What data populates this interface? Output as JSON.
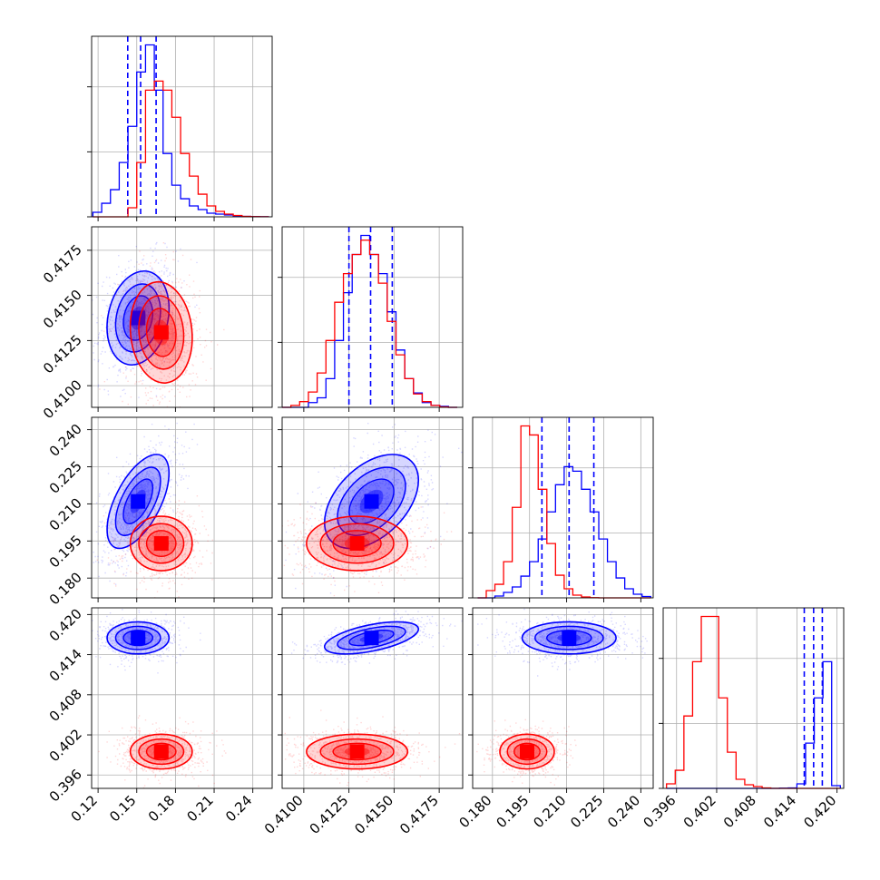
{
  "chart_data": {
    "type": "corner",
    "grid": true,
    "colors": {
      "series_a": "#0000ff",
      "series_b": "#ff0000"
    },
    "params": [
      {
        "range": [
          0.115,
          0.255
        ],
        "ticks": [
          0.12,
          0.15,
          0.18,
          0.21,
          0.24
        ],
        "tick_labels": [
          "0.12",
          "0.15",
          "0.18",
          "0.21",
          "0.24"
        ]
      },
      {
        "range": [
          0.4088,
          0.4188
        ],
        "ticks": [
          0.41,
          0.4125,
          0.415,
          0.4175
        ],
        "tick_labels": [
          "0.4100",
          "0.4125",
          "0.4150",
          "0.4175"
        ]
      },
      {
        "range": [
          0.172,
          0.245
        ],
        "ticks": [
          0.18,
          0.195,
          0.21,
          0.225,
          0.24
        ],
        "tick_labels": [
          "0.180",
          "0.195",
          "0.210",
          "0.225",
          "0.240"
        ]
      },
      {
        "range": [
          0.394,
          0.421
        ],
        "ticks": [
          0.396,
          0.402,
          0.408,
          0.414,
          0.42
        ],
        "tick_labels": [
          "0.396",
          "0.402",
          "0.408",
          "0.414",
          "0.420"
        ]
      }
    ],
    "series": [
      {
        "color": "#0000ff",
        "quantiles": [
          [
            0.143,
            0.153,
            0.165
          ],
          [
            0.4125,
            0.4137,
            0.4149
          ],
          [
            0.2,
            0.211,
            0.221
          ],
          [
            0.4151,
            0.4165,
            0.4178
          ]
        ],
        "means": [
          0.151,
          0.41375,
          0.211,
          0.4165
        ],
        "sds": [
          0.012,
          0.0013,
          0.0095,
          0.0012
        ],
        "corr": [
          [
            0,
            1,
            0.2
          ],
          [
            0,
            2,
            0.6
          ],
          [
            1,
            2,
            0.45
          ],
          [
            1,
            3,
            0.55
          ],
          [
            0,
            3,
            0.0
          ],
          [
            2,
            3,
            0.0
          ]
        ],
        "hists": [
          {
            "edges": [
              0.116,
              0.252
            ],
            "counts": [
              0.5,
              1.5,
              3,
              6,
              10,
              16,
              19,
              14,
              7,
              3.5,
              2,
              1.2,
              0.8,
              0.4,
              0.3,
              0.2,
              0.1,
              0.05,
              0.02,
              0.01
            ]
          },
          {
            "edges": [
              0.4088,
              0.4185
            ],
            "counts": [
              0,
              0,
              0,
              0.5,
              1,
              3,
              7,
              12,
              16,
              18,
              16,
              14,
              10,
              6,
              3,
              1.5,
              0.5,
              0.2,
              0.1,
              0
            ]
          },
          {
            "edges": [
              0.174,
              0.244
            ],
            "counts": [
              0,
              0,
              0.2,
              0.6,
              1.2,
              2.4,
              4,
              6.5,
              9.5,
              12.5,
              14.5,
              14,
              12,
              9.5,
              6.5,
              4,
              2.2,
              1,
              0.4,
              0.15
            ]
          },
          {
            "edges": [
              0.3945,
              0.4205
            ],
            "counts": [
              0,
              0,
              0,
              0,
              0,
              0,
              0,
              0,
              0,
              0,
              0,
              0,
              0,
              0.02,
              0.05,
              0.5,
              5,
              10,
              14,
              0.3
            ]
          }
        ]
      },
      {
        "color": "#ff0000",
        "quantiles": [],
        "means": [
          0.169,
          0.41295,
          0.194,
          0.3995
        ],
        "sds": [
          0.012,
          0.0014,
          0.0055,
          0.0013
        ],
        "corr": [
          [
            0,
            1,
            -0.1
          ],
          [
            0,
            2,
            0.0
          ],
          [
            1,
            2,
            0.0
          ],
          [
            0,
            3,
            0.0
          ],
          [
            1,
            3,
            0.0
          ],
          [
            2,
            3,
            0.0
          ]
        ],
        "hists": [
          {
            "edges": [
              0.116,
              0.252
            ],
            "counts": [
              0,
              0,
              0,
              0,
              1,
              6,
              14,
              15,
              14,
              11,
              7,
              4.5,
              2.5,
              1.2,
              0.6,
              0.3,
              0.15,
              0.05,
              0.02,
              0.01
            ]
          },
          {
            "edges": [
              0.4088,
              0.4185
            ],
            "counts": [
              0,
              0.2,
              0.6,
              1.6,
              3.6,
              7,
              11,
              14,
              16,
              17.5,
              16,
              13,
              9,
              5.5,
              3,
              1.4,
              0.6,
              0.2,
              0.05,
              0
            ]
          },
          {
            "edges": [
              0.174,
              0.244
            ],
            "counts": [
              0,
              0.8,
              1.5,
              4,
              10,
              19,
              18,
              12,
              6,
              2.5,
              1,
              0.3,
              0.1,
              0.02,
              0,
              0,
              0,
              0,
              0,
              0
            ]
          },
          {
            "edges": [
              0.3945,
              0.4205
            ],
            "counts": [
              0.5,
              2,
              8,
              14,
              19,
              19,
              10,
              4,
              1,
              0.4,
              0.2,
              0.05,
              0,
              0,
              0,
              0,
              0,
              0,
              0,
              0
            ]
          }
        ]
      }
    ]
  }
}
